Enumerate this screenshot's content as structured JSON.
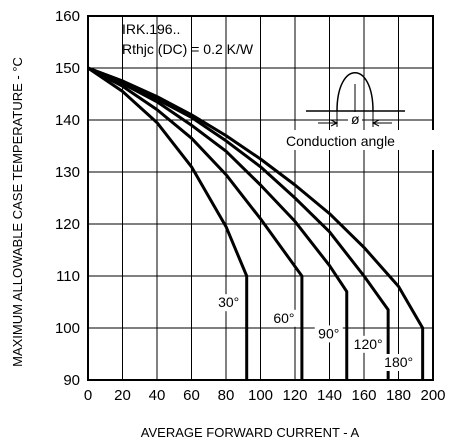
{
  "chart_data": {
    "type": "line",
    "xlabel": "AVERAGE FORWARD CURRENT  -  A",
    "ylabel": "MAXIMUM ALLOWABLE CASE TEMPERATURE  -  °C",
    "xlim": [
      0,
      200
    ],
    "ylim": [
      90,
      160
    ],
    "xticks": [
      0,
      20,
      40,
      60,
      80,
      100,
      120,
      140,
      160,
      180,
      200
    ],
    "yticks": [
      90,
      100,
      110,
      120,
      130,
      140,
      150,
      160
    ],
    "grid": true,
    "annotations": [
      "IRK.196..",
      "Rthjc (DC) = 0.2 K/W",
      "Conduction angle",
      "ø"
    ],
    "series": [
      {
        "name": "30°",
        "x": [
          0,
          20,
          40,
          60,
          80,
          92,
          92
        ],
        "y": [
          150,
          145.5,
          139.5,
          131,
          119.5,
          110,
          90
        ]
      },
      {
        "name": "60°",
        "x": [
          0,
          20,
          40,
          60,
          80,
          100,
          124,
          124
        ],
        "y": [
          150,
          146.5,
          142,
          136.5,
          129.5,
          121,
          110,
          90
        ]
      },
      {
        "name": "90°",
        "x": [
          0,
          20,
          40,
          60,
          80,
          100,
          120,
          140,
          150,
          150
        ],
        "y": [
          150,
          147,
          143.5,
          139,
          134,
          127.5,
          120.5,
          112,
          107,
          90
        ]
      },
      {
        "name": "120°",
        "x": [
          0,
          20,
          40,
          60,
          80,
          100,
          120,
          140,
          160,
          174,
          174
        ],
        "y": [
          150,
          147.5,
          144,
          140.5,
          136,
          131,
          125,
          118.5,
          110,
          103.5,
          90
        ]
      },
      {
        "name": "180°",
        "x": [
          0,
          20,
          40,
          60,
          80,
          100,
          120,
          140,
          160,
          180,
          194,
          194
        ],
        "y": [
          150,
          147.5,
          144.5,
          141,
          137,
          132.5,
          127.5,
          122,
          115.5,
          108,
          100,
          90
        ]
      }
    ]
  }
}
